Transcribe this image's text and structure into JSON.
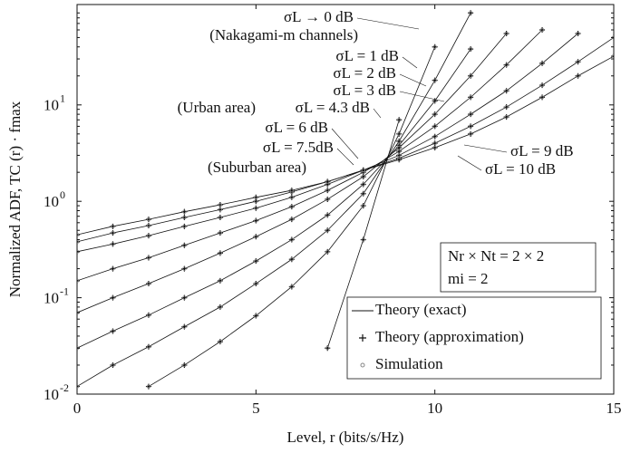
{
  "chart_data": {
    "type": "line",
    "xlabel": "Level, r (bits/s/Hz)",
    "ylabel": "Normalized ADF, TC (r) · fmax",
    "x": [
      0,
      1,
      2,
      3,
      4,
      5,
      6,
      7,
      8,
      9,
      10,
      11,
      12,
      13,
      14,
      15
    ],
    "xlim": [
      0,
      15
    ],
    "xticks": [
      0,
      5,
      10,
      15
    ],
    "ylim": [
      0.01,
      110
    ],
    "yticks": [
      {
        "value": 0.01,
        "label": "10",
        "exponent": "-2"
      },
      {
        "value": 0.1,
        "label": "10",
        "exponent": "-1"
      },
      {
        "value": 1,
        "label": "10",
        "exponent": "0"
      },
      {
        "value": 10,
        "label": "10",
        "exponent": "1"
      }
    ],
    "log_y": true,
    "grid": false,
    "legend": [
      "Theory (exact)",
      "Theory (approximation)",
      "Simulation"
    ],
    "legend_position": "lower right",
    "color": "#111111",
    "simulation_color": "#888888",
    "series": [
      {
        "name": "σL → 0 dB",
        "values": [
          null,
          null,
          null,
          null,
          null,
          null,
          null,
          0.03,
          0.4,
          7,
          null,
          null,
          null,
          null,
          null,
          null
        ]
      },
      {
        "name": "σL = 1 dB",
        "values": [
          null,
          null,
          0.012,
          0.02,
          0.035,
          0.065,
          0.13,
          0.3,
          0.9,
          5,
          40,
          null,
          null,
          null,
          null,
          null
        ]
      },
      {
        "name": "σL = 2 dB",
        "values": [
          0.012,
          0.02,
          0.031,
          0.05,
          0.08,
          0.14,
          0.25,
          0.5,
          1.2,
          4.2,
          18,
          90,
          null,
          null,
          null,
          null
        ]
      },
      {
        "name": "σL = 3 dB",
        "values": [
          0.03,
          0.045,
          0.066,
          0.1,
          0.15,
          0.24,
          0.4,
          0.72,
          1.5,
          3.8,
          11,
          38,
          null,
          null,
          null,
          null
        ]
      },
      {
        "name": "σL = 4.3 dB",
        "values": [
          0.07,
          0.1,
          0.14,
          0.2,
          0.29,
          0.43,
          0.65,
          1.05,
          1.8,
          3.6,
          8,
          20,
          55,
          null,
          null,
          null
        ]
      },
      {
        "name": "σL = 6 dB",
        "values": [
          0.15,
          0.2,
          0.26,
          0.35,
          0.47,
          0.63,
          0.88,
          1.3,
          2,
          3.3,
          6,
          12,
          26,
          60,
          null,
          null
        ]
      },
      {
        "name": "σL = 7.5dB",
        "values": [
          0.3,
          0.36,
          0.44,
          0.55,
          0.68,
          0.85,
          1.1,
          1.5,
          2.1,
          3,
          4.7,
          8,
          14,
          27,
          55,
          null
        ]
      },
      {
        "name": "σL = 9 dB",
        "values": [
          0.38,
          0.47,
          0.56,
          0.68,
          0.82,
          1.0,
          1.25,
          1.6,
          2.1,
          2.8,
          4,
          6,
          9.5,
          16,
          28,
          50
        ]
      },
      {
        "name": "σL = 10 dB",
        "values": [
          0.45,
          0.55,
          0.65,
          0.78,
          0.92,
          1.1,
          1.3,
          1.6,
          2.1,
          2.7,
          3.6,
          5,
          7.5,
          12,
          20,
          32
        ]
      }
    ],
    "annotations": [
      "(Nakagami-m channels)",
      "(Urban area)",
      "(Suburban area)",
      "Nr × Nt = 2 × 2",
      "mi = 2"
    ]
  }
}
